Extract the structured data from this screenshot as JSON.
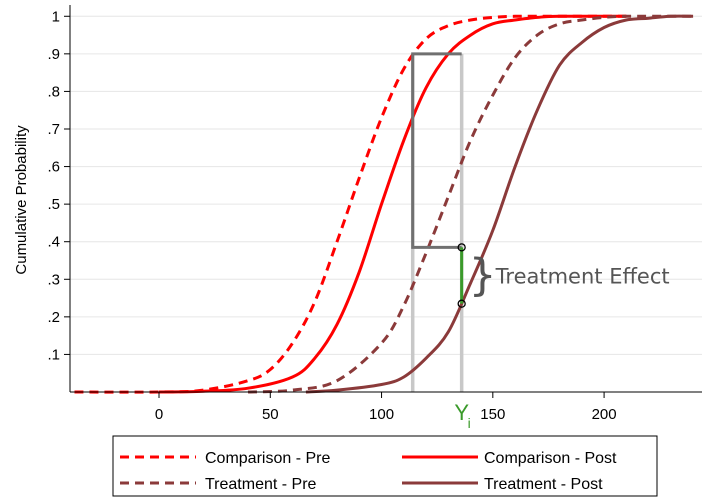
{
  "chart_data": {
    "type": "line",
    "title": "",
    "xlabel": "",
    "ylabel": "Cumulative Probability",
    "xlim": [
      -40,
      244
    ],
    "ylim": [
      0,
      1.03
    ],
    "xticks": [
      0,
      50,
      100,
      150,
      200
    ],
    "xtick_labels": [
      "0",
      "50",
      "100",
      "150",
      "200"
    ],
    "yticks": [
      0.1,
      0.2,
      0.3,
      0.4,
      0.5,
      0.6,
      0.7,
      0.8,
      0.9,
      1.0
    ],
    "ytick_labels": [
      ".1",
      ".2",
      ".3",
      ".4",
      ".5",
      ".6",
      ".7",
      ".8",
      ".9",
      "1"
    ],
    "grid": true,
    "legend_position": "bottom",
    "series": [
      {
        "name": "Comparison - Pre",
        "color": "#ff0000",
        "dash": "dashed",
        "x": [
          -38,
          0,
          20,
          40,
          50,
          60,
          70,
          80,
          90,
          100,
          110,
          120,
          130,
          140,
          150,
          160,
          180,
          210
        ],
        "y": [
          0,
          0,
          0.005,
          0.03,
          0.06,
          0.13,
          0.24,
          0.4,
          0.57,
          0.73,
          0.86,
          0.94,
          0.975,
          0.99,
          0.997,
          1.0,
          1.0,
          1.0
        ]
      },
      {
        "name": "Comparison - Post",
        "color": "#ff0000",
        "dash": "solid",
        "x": [
          0,
          20,
          40,
          60,
          70,
          80,
          90,
          100,
          110,
          120,
          130,
          140,
          150,
          160,
          170,
          180,
          210
        ],
        "y": [
          0,
          0.002,
          0.01,
          0.04,
          0.09,
          0.18,
          0.32,
          0.5,
          0.67,
          0.81,
          0.9,
          0.95,
          0.98,
          0.99,
          0.997,
          1.0,
          1.0
        ]
      },
      {
        "name": "Treatment - Pre",
        "color": "#8b3a3a",
        "dash": "dashed",
        "x": [
          40,
          60,
          80,
          100,
          110,
          120,
          130,
          140,
          150,
          160,
          170,
          180,
          190,
          200,
          210,
          240
        ],
        "y": [
          0,
          0.005,
          0.03,
          0.13,
          0.23,
          0.37,
          0.52,
          0.67,
          0.79,
          0.89,
          0.95,
          0.98,
          0.99,
          0.997,
          1.0,
          1.0
        ]
      },
      {
        "name": "Treatment - Post",
        "color": "#8b3a3a",
        "dash": "solid",
        "x": [
          66,
          80,
          100,
          110,
          120,
          130,
          140,
          150,
          160,
          170,
          180,
          190,
          200,
          210,
          220,
          230,
          240
        ],
        "y": [
          0,
          0.005,
          0.02,
          0.04,
          0.09,
          0.16,
          0.29,
          0.43,
          0.6,
          0.75,
          0.87,
          0.93,
          0.97,
          0.99,
          0.995,
          1.0,
          1.0
        ]
      }
    ],
    "annotations": {
      "treatment_effect_label": "Treatment Effect",
      "x_marker_label": "Y",
      "x_marker_subscript": "i",
      "x_marker_value": 136,
      "reference_x_value": 114,
      "upper_probability": 0.9,
      "counterfactual_probability": 0.385,
      "observed_probability": 0.235,
      "vertical_line_color": "#c8c8c8",
      "connector_color": "#707070",
      "effect_color": "#3a9a2a"
    }
  }
}
